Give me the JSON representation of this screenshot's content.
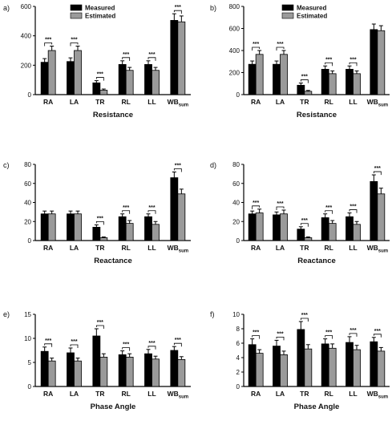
{
  "figure": {
    "panel_labels": [
      "a)",
      "b)",
      "c)",
      "d)",
      "e)",
      "f)"
    ],
    "legend": {
      "measured": "Measured",
      "estimated": "Estimated"
    },
    "colors": {
      "measured": "#000000",
      "estimated": "#9a9a9a"
    },
    "significance_marker": "***"
  },
  "chart_data": [
    {
      "type": "bar",
      "panel": "a)",
      "categories": [
        "RA",
        "LA",
        "TR",
        "RL",
        "LL",
        "WBsum"
      ],
      "xlabel": "Resistance",
      "ylabel": "",
      "ylim": [
        0,
        600
      ],
      "yticks": [
        0,
        200,
        400,
        600
      ],
      "legend": "top",
      "series": [
        {
          "name": "Measured",
          "values": [
            220,
            225,
            80,
            205,
            205,
            505
          ],
          "errors": [
            25,
            25,
            15,
            25,
            25,
            45
          ]
        },
        {
          "name": "Estimated",
          "values": [
            300,
            300,
            30,
            165,
            165,
            495
          ],
          "errors": [
            30,
            30,
            8,
            20,
            20,
            40
          ]
        }
      ],
      "significance": [
        "***",
        "***",
        "***",
        "***",
        "***",
        "***"
      ]
    },
    {
      "type": "bar",
      "panel": "b)",
      "categories": [
        "RA",
        "LA",
        "TR",
        "RL",
        "LL",
        "WBsum"
      ],
      "xlabel": "Resistance",
      "ylabel": "",
      "ylim": [
        0,
        800
      ],
      "yticks": [
        0,
        200,
        400,
        600,
        800
      ],
      "legend": "top",
      "series": [
        {
          "name": "Measured",
          "values": [
            275,
            275,
            85,
            230,
            230,
            590
          ],
          "errors": [
            30,
            30,
            20,
            30,
            30,
            50
          ]
        },
        {
          "name": "Estimated",
          "values": [
            365,
            365,
            30,
            190,
            190,
            580
          ],
          "errors": [
            35,
            35,
            8,
            25,
            25,
            45
          ]
        }
      ],
      "significance": [
        "***",
        "***",
        "***",
        "***",
        "***",
        ""
      ]
    },
    {
      "type": "bar",
      "panel": "c)",
      "categories": [
        "RA",
        "LA",
        "TR",
        "RL",
        "LL",
        "WBsum"
      ],
      "xlabel": "Reactance",
      "ylabel": "",
      "ylim": [
        0,
        80
      ],
      "yticks": [
        0,
        20,
        40,
        60,
        80
      ],
      "series": [
        {
          "name": "Measured",
          "values": [
            28,
            28,
            14,
            25,
            25,
            66
          ],
          "errors": [
            3,
            3,
            2.5,
            3,
            3,
            6
          ]
        },
        {
          "name": "Estimated",
          "values": [
            28,
            28,
            3,
            18,
            17,
            49
          ],
          "errors": [
            3,
            3,
            0.8,
            3,
            3,
            5
          ]
        }
      ],
      "significance": [
        "",
        "",
        "***",
        "***",
        "***",
        "***"
      ]
    },
    {
      "type": "bar",
      "panel": "d)",
      "categories": [
        "RA",
        "LA",
        "TR",
        "RL",
        "LL",
        "WBsum"
      ],
      "xlabel": "Reactance",
      "ylabel": "",
      "ylim": [
        0,
        80
      ],
      "yticks": [
        0,
        20,
        40,
        60,
        80
      ],
      "series": [
        {
          "name": "Measured",
          "values": [
            28,
            27,
            12,
            24,
            25,
            62
          ],
          "errors": [
            3,
            3,
            2.5,
            4,
            4,
            7
          ]
        },
        {
          "name": "Estimated",
          "values": [
            29,
            28,
            3,
            18,
            17,
            49
          ],
          "errors": [
            4,
            4,
            0.8,
            3,
            3,
            6
          ]
        }
      ],
      "significance": [
        "***",
        "***",
        "***",
        "***",
        "***",
        "***"
      ]
    },
    {
      "type": "bar",
      "panel": "e)",
      "categories": [
        "RA",
        "LA",
        "TR",
        "RL",
        "LL",
        "WBsum"
      ],
      "xlabel": "Phase Angle",
      "ylabel": "",
      "ylim": [
        0,
        15
      ],
      "yticks": [
        0,
        5,
        10,
        15
      ],
      "series": [
        {
          "name": "Measured",
          "values": [
            7.3,
            7.0,
            10.5,
            6.6,
            6.8,
            7.5
          ],
          "errors": [
            0.9,
            1.0,
            1.5,
            0.8,
            0.9,
            0.8
          ]
        },
        {
          "name": "Estimated",
          "values": [
            5.3,
            5.3,
            6.1,
            6.1,
            5.7,
            5.6
          ],
          "errors": [
            0.6,
            0.6,
            0.7,
            0.7,
            0.6,
            0.6
          ]
        }
      ],
      "significance": [
        "***",
        "***",
        "***",
        "***",
        "***",
        "***"
      ]
    },
    {
      "type": "bar",
      "panel": "f)",
      "categories": [
        "RA",
        "LA",
        "TR",
        "RL",
        "LL",
        "WBsum"
      ],
      "xlabel": "Phase Angle",
      "ylabel": "",
      "ylim": [
        0,
        10
      ],
      "yticks": [
        0,
        2,
        4,
        6,
        8,
        10
      ],
      "series": [
        {
          "name": "Measured",
          "values": [
            5.8,
            5.6,
            7.9,
            5.9,
            6.1,
            6.2
          ],
          "errors": [
            0.8,
            0.8,
            1.1,
            0.7,
            0.8,
            0.6
          ]
        },
        {
          "name": "Estimated",
          "values": [
            4.6,
            4.4,
            5.2,
            5.3,
            5.1,
            4.9
          ],
          "errors": [
            0.5,
            0.5,
            0.6,
            0.6,
            0.6,
            0.5
          ]
        }
      ],
      "significance": [
        "***",
        "***",
        "***",
        "***",
        "***",
        "***"
      ]
    }
  ]
}
